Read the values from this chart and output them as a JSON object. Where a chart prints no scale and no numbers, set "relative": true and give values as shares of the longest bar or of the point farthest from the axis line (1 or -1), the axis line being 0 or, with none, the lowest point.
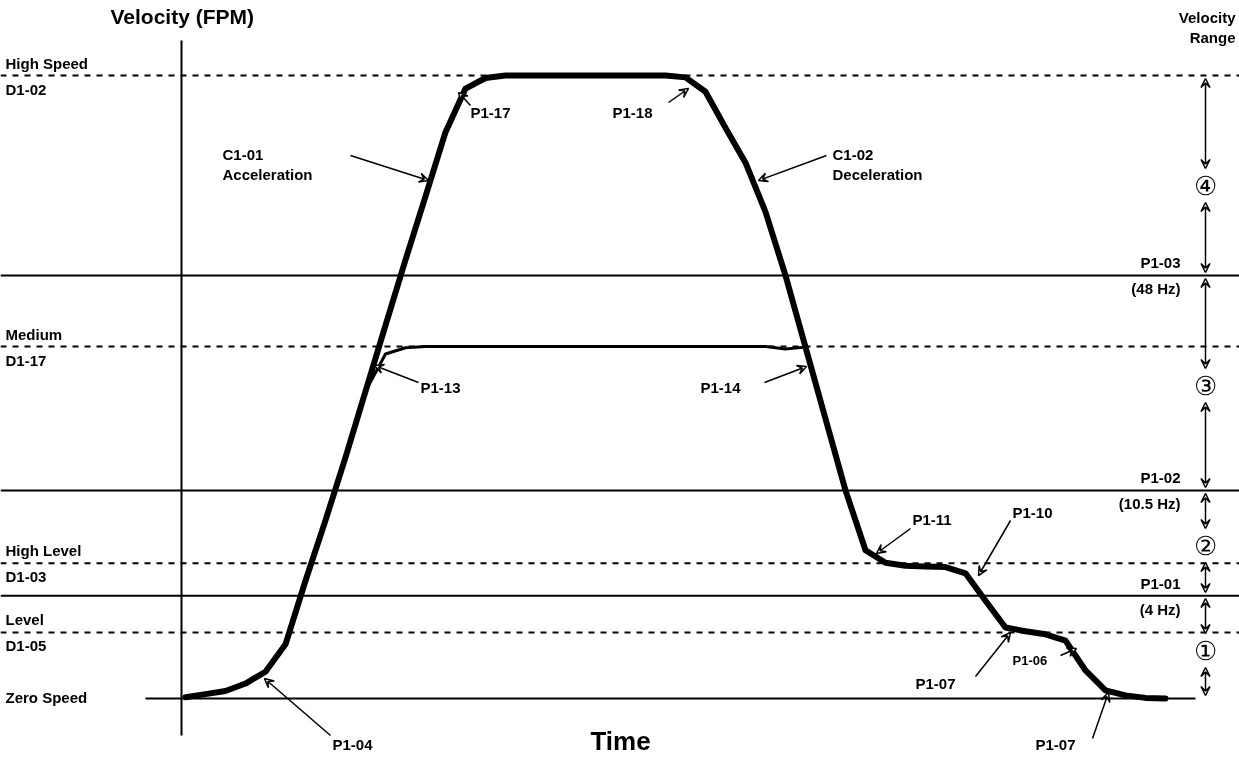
{
  "chart_data": {
    "type": "line",
    "relative": true,
    "xlabel": "Time",
    "ylabel": "Velocity (FPM)",
    "categories": [
      null,
      null,
      null,
      null,
      null,
      null,
      null,
      null,
      null,
      null,
      null,
      null,
      null,
      null,
      null,
      null,
      null,
      null,
      null,
      null,
      null,
      null,
      null,
      null,
      null,
      null,
      null,
      null,
      null,
      null,
      null,
      null,
      null,
      null,
      null,
      null,
      null,
      null,
      null,
      null,
      null,
      null,
      null,
      null,
      null,
      null,
      null,
      null,
      null,
      null
    ],
    "series": [
      {
        "color": "#000000",
        "values": [
          0.002,
          0.007,
          0.012,
          0.024,
          0.043,
          0.087,
          0.189,
          0.286,
          0.387,
          0.493,
          0.599,
          0.704,
          0.806,
          0.909,
          0.979,
          0.996,
          1,
          1,
          1,
          1,
          1,
          1,
          1,
          1,
          1,
          0.997,
          0.974,
          0.916,
          0.86,
          0.781,
          0.679,
          0.564,
          0.449,
          0.334,
          0.238,
          0.218,
          0.213,
          0.212,
          0.211,
          0.201,
          0.157,
          0.114,
          0.108,
          0.103,
          0.093,
          0.045,
          0.013,
          0.005,
          0.001,
          0
        ]
      },
      {
        "color": "#000000",
        "values": [
          null,
          null,
          null,
          null,
          null,
          null,
          null,
          null,
          null,
          0.493,
          0.553,
          0.563,
          0.565,
          0.565,
          0.565,
          0.565,
          0.565,
          0.565,
          0.565,
          0.565,
          0.565,
          0.565,
          0.565,
          0.565,
          0.565,
          0.565,
          0.565,
          0.565,
          0.565,
          0.565,
          0.561,
          0.564,
          null,
          null,
          null,
          null,
          null,
          null,
          null,
          null,
          null,
          null,
          null,
          null,
          null,
          null,
          null,
          null,
          null,
          null
        ]
      }
    ],
    "ref_lines": [
      {
        "axis": "y",
        "value": 1,
        "label": "High Speed\nD1-02",
        "line_style": "dashed",
        "color": "#000000"
      },
      {
        "axis": "y",
        "value": 0.679,
        "label": "P1-03\n(48 Hz)",
        "line_style": "solid",
        "color": "#000000"
      },
      {
        "axis": "y",
        "value": 0.565,
        "label": "Medium\nD1-17",
        "line_style": "dashed",
        "color": "#000000"
      },
      {
        "axis": "y",
        "value": 0.334,
        "label": "P1-02\n(10.5 Hz)",
        "line_style": "solid",
        "color": "#000000"
      },
      {
        "axis": "y",
        "value": 0.217,
        "label": "High Level\nD1-03",
        "line_style": "dashed",
        "color": "#000000"
      },
      {
        "axis": "y",
        "value": 0.165,
        "label": "P1-01\n(4 Hz)",
        "line_style": "solid",
        "color": "#000000"
      },
      {
        "axis": "y",
        "value": 0.106,
        "label": "Level\nD1-05",
        "line_style": "dashed",
        "color": "#000000"
      }
    ],
    "annotations": [
      "C1-01\nAcceleration",
      "C1-02\nDeceleration",
      "P1-17",
      "P1-18",
      "P1-13",
      "P1-14",
      "P1-04",
      "P1-11",
      "P1-10",
      "P1-07",
      "P1-06",
      "P1-07",
      "Velocity\nRange",
      "④",
      "③",
      "②",
      "①",
      "Zero Speed"
    ]
  }
}
